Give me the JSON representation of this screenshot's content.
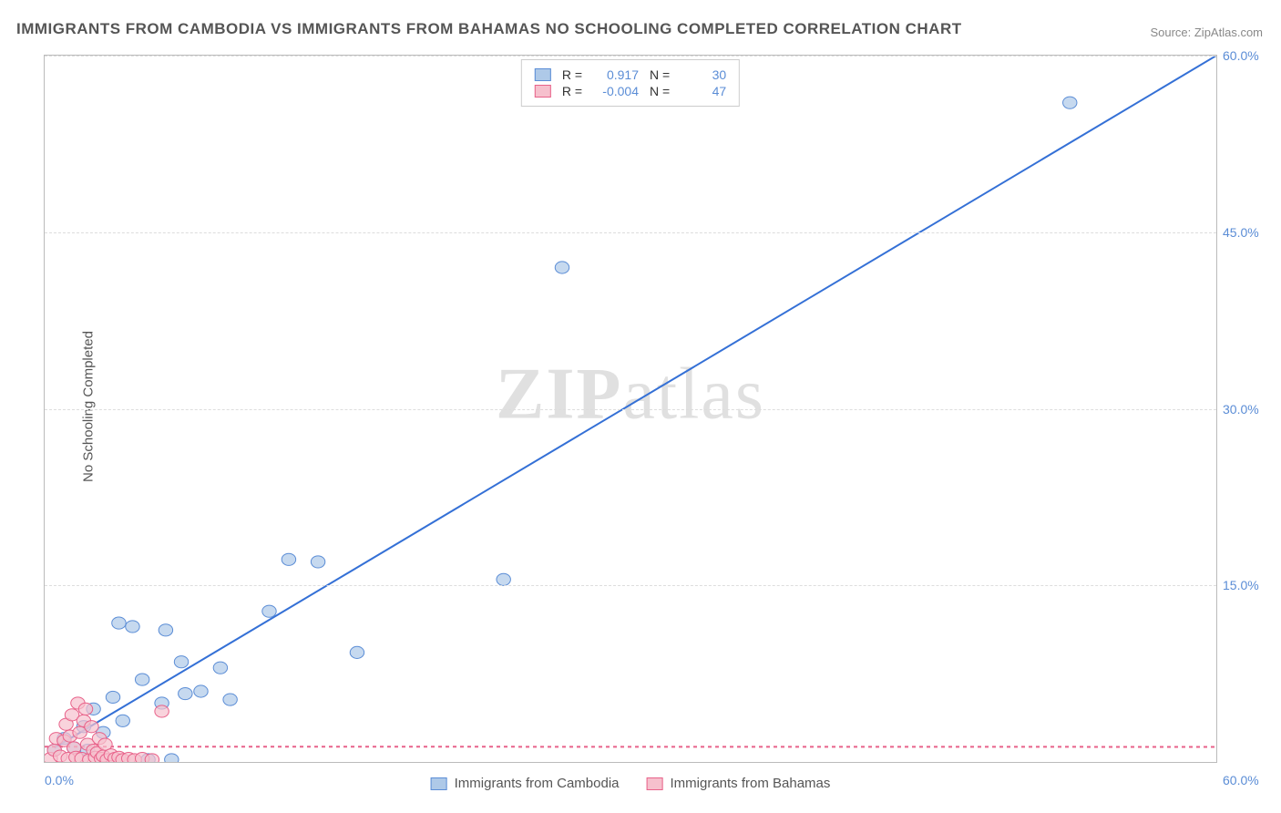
{
  "title": "IMMIGRANTS FROM CAMBODIA VS IMMIGRANTS FROM BAHAMAS NO SCHOOLING COMPLETED CORRELATION CHART",
  "source": "Source: ZipAtlas.com",
  "ylabel": "No Schooling Completed",
  "watermark_bold": "ZIP",
  "watermark_light": "atlas",
  "chart": {
    "type": "scatter",
    "xlim": [
      0,
      60
    ],
    "ylim": [
      0,
      60
    ],
    "xtick_min_label": "0.0%",
    "xtick_max_label": "60.0%",
    "yticks": [
      {
        "v": 15,
        "label": "15.0%"
      },
      {
        "v": 30,
        "label": "30.0%"
      },
      {
        "v": 45,
        "label": "45.0%"
      },
      {
        "v": 60,
        "label": "60.0%"
      }
    ],
    "grid_color": "#dddddd",
    "background_color": "#ffffff",
    "series": [
      {
        "name": "Immigrants from Cambodia",
        "fill_color": "#aec9e8",
        "stroke_color": "#5b8dd6",
        "line_color": "#3470d6",
        "line_dash": "none",
        "r_value": "0.917",
        "n_value": "30",
        "trend": {
          "x1": 0.5,
          "y1": 1.2,
          "x2": 60,
          "y2": 60
        },
        "points": [
          {
            "x": 0.5,
            "y": 1.0
          },
          {
            "x": 1.0,
            "y": 2.0
          },
          {
            "x": 1.5,
            "y": 1.2
          },
          {
            "x": 2.0,
            "y": 3.0
          },
          {
            "x": 2.2,
            "y": 1.0
          },
          {
            "x": 2.5,
            "y": 4.5
          },
          {
            "x": 3.0,
            "y": 2.5
          },
          {
            "x": 3.5,
            "y": 5.5
          },
          {
            "x": 3.8,
            "y": 11.8
          },
          {
            "x": 4.0,
            "y": 3.5
          },
          {
            "x": 4.5,
            "y": 11.5
          },
          {
            "x": 5.0,
            "y": 7.0
          },
          {
            "x": 5.3,
            "y": 0.2
          },
          {
            "x": 6.0,
            "y": 5.0
          },
          {
            "x": 6.2,
            "y": 11.2
          },
          {
            "x": 6.5,
            "y": 0.2
          },
          {
            "x": 7.0,
            "y": 8.5
          },
          {
            "x": 7.2,
            "y": 5.8
          },
          {
            "x": 8.0,
            "y": 6.0
          },
          {
            "x": 9.0,
            "y": 8.0
          },
          {
            "x": 9.5,
            "y": 5.3
          },
          {
            "x": 11.5,
            "y": 12.8
          },
          {
            "x": 12.5,
            "y": 17.2
          },
          {
            "x": 14.0,
            "y": 17.0
          },
          {
            "x": 16.0,
            "y": 9.3
          },
          {
            "x": 23.5,
            "y": 15.5
          },
          {
            "x": 26.5,
            "y": 42.0
          },
          {
            "x": 52.5,
            "y": 56.0
          }
        ]
      },
      {
        "name": "Immigrants from Bahamas",
        "fill_color": "#f6c0cd",
        "stroke_color": "#e8628a",
        "line_color": "#e8628a",
        "line_dash": "4,4",
        "r_value": "-0.004",
        "n_value": "47",
        "trend": {
          "x1": 0,
          "y1": 1.3,
          "x2": 60,
          "y2": 1.28
        },
        "points": [
          {
            "x": 0.3,
            "y": 0.3
          },
          {
            "x": 0.5,
            "y": 1.0
          },
          {
            "x": 0.6,
            "y": 2.0
          },
          {
            "x": 0.8,
            "y": 0.5
          },
          {
            "x": 1.0,
            "y": 1.8
          },
          {
            "x": 1.1,
            "y": 3.2
          },
          {
            "x": 1.2,
            "y": 0.3
          },
          {
            "x": 1.3,
            "y": 2.2
          },
          {
            "x": 1.4,
            "y": 4.0
          },
          {
            "x": 1.5,
            "y": 1.2
          },
          {
            "x": 1.6,
            "y": 0.4
          },
          {
            "x": 1.7,
            "y": 5.0
          },
          {
            "x": 1.8,
            "y": 2.5
          },
          {
            "x": 1.9,
            "y": 0.3
          },
          {
            "x": 2.0,
            "y": 3.5
          },
          {
            "x": 2.1,
            "y": 4.5
          },
          {
            "x": 2.2,
            "y": 1.5
          },
          {
            "x": 2.3,
            "y": 0.2
          },
          {
            "x": 2.4,
            "y": 3.0
          },
          {
            "x": 2.5,
            "y": 1.0
          },
          {
            "x": 2.6,
            "y": 0.4
          },
          {
            "x": 2.7,
            "y": 0.8
          },
          {
            "x": 2.8,
            "y": 2.0
          },
          {
            "x": 2.9,
            "y": 0.3
          },
          {
            "x": 3.0,
            "y": 0.5
          },
          {
            "x": 3.1,
            "y": 1.5
          },
          {
            "x": 3.2,
            "y": 0.2
          },
          {
            "x": 3.4,
            "y": 0.6
          },
          {
            "x": 3.6,
            "y": 0.3
          },
          {
            "x": 3.8,
            "y": 0.4
          },
          {
            "x": 4.0,
            "y": 0.2
          },
          {
            "x": 4.3,
            "y": 0.3
          },
          {
            "x": 4.6,
            "y": 0.2
          },
          {
            "x": 5.0,
            "y": 0.3
          },
          {
            "x": 5.5,
            "y": 0.2
          },
          {
            "x": 6.0,
            "y": 4.3
          }
        ]
      }
    ]
  },
  "legend_bottom": [
    {
      "label": "Immigrants from Cambodia",
      "fill": "#aec9e8",
      "stroke": "#5b8dd6"
    },
    {
      "label": "Immigrants from Bahamas",
      "fill": "#f6c0cd",
      "stroke": "#e8628a"
    }
  ]
}
